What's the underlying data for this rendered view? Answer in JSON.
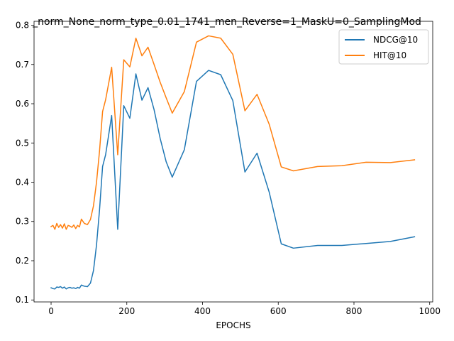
{
  "chart_data": {
    "type": "line",
    "title": "_norm_None_norm_type_0.01_1741_men_Reverse=1_MaskU=0_SamplingMod",
    "xlabel": "EPOCHS",
    "ylabel": "",
    "xlim": [
      -45,
      1008
    ],
    "ylim": [
      0.095,
      0.81
    ],
    "xticks": [
      0,
      200,
      400,
      600,
      800,
      1000
    ],
    "yticks": [
      0.1,
      0.2,
      0.3,
      0.4,
      0.5,
      0.6,
      0.7,
      0.8
    ],
    "xtick_labels": [
      "0",
      "200",
      "400",
      "600",
      "800",
      "1000"
    ],
    "ytick_labels": [
      "0.1",
      "0.2",
      "0.3",
      "0.4",
      "0.5",
      "0.6",
      "0.7",
      "0.8"
    ],
    "grid": false,
    "legend_position": "top-right",
    "series": [
      {
        "name": "NDCG@10",
        "color": "#1f77b4",
        "x": [
          0,
          5,
          10,
          15,
          20,
          25,
          30,
          35,
          40,
          45,
          50,
          55,
          60,
          65,
          70,
          75,
          80,
          88,
          96,
          104,
          112,
          120,
          128,
          136,
          144,
          160,
          176,
          192,
          208,
          224,
          240,
          256,
          272,
          288,
          304,
          320,
          352,
          384,
          416,
          448,
          480,
          512,
          544,
          576,
          608,
          640,
          704,
          768,
          832,
          896,
          960
        ],
        "y": [
          0.131,
          0.129,
          0.128,
          0.133,
          0.132,
          0.134,
          0.13,
          0.133,
          0.128,
          0.131,
          0.132,
          0.13,
          0.131,
          0.129,
          0.132,
          0.13,
          0.138,
          0.135,
          0.134,
          0.143,
          0.175,
          0.24,
          0.33,
          0.44,
          0.47,
          0.57,
          0.28,
          0.595,
          0.563,
          0.676,
          0.609,
          0.641,
          0.585,
          0.512,
          0.452,
          0.413,
          0.483,
          0.657,
          0.685,
          0.674,
          0.608,
          0.426,
          0.474,
          0.375,
          0.243,
          0.232,
          0.239,
          0.239,
          0.244,
          0.249,
          0.261
        ]
      },
      {
        "name": "HIT@10",
        "color": "#ff7f0e",
        "x": [
          0,
          5,
          10,
          15,
          20,
          25,
          30,
          35,
          40,
          45,
          50,
          55,
          60,
          65,
          70,
          75,
          80,
          88,
          96,
          104,
          112,
          120,
          128,
          136,
          144,
          160,
          176,
          192,
          208,
          224,
          240,
          256,
          272,
          288,
          304,
          320,
          352,
          384,
          416,
          448,
          480,
          512,
          544,
          576,
          608,
          640,
          704,
          768,
          832,
          896,
          960
        ],
        "y": [
          0.287,
          0.29,
          0.28,
          0.295,
          0.285,
          0.292,
          0.283,
          0.294,
          0.28,
          0.29,
          0.288,
          0.285,
          0.291,
          0.282,
          0.29,
          0.286,
          0.306,
          0.295,
          0.292,
          0.305,
          0.34,
          0.4,
          0.48,
          0.58,
          0.61,
          0.693,
          0.47,
          0.712,
          0.694,
          0.767,
          0.722,
          0.744,
          0.7,
          0.655,
          0.615,
          0.576,
          0.631,
          0.757,
          0.773,
          0.767,
          0.726,
          0.582,
          0.624,
          0.548,
          0.439,
          0.429,
          0.44,
          0.442,
          0.451,
          0.45,
          0.457
        ]
      }
    ]
  }
}
